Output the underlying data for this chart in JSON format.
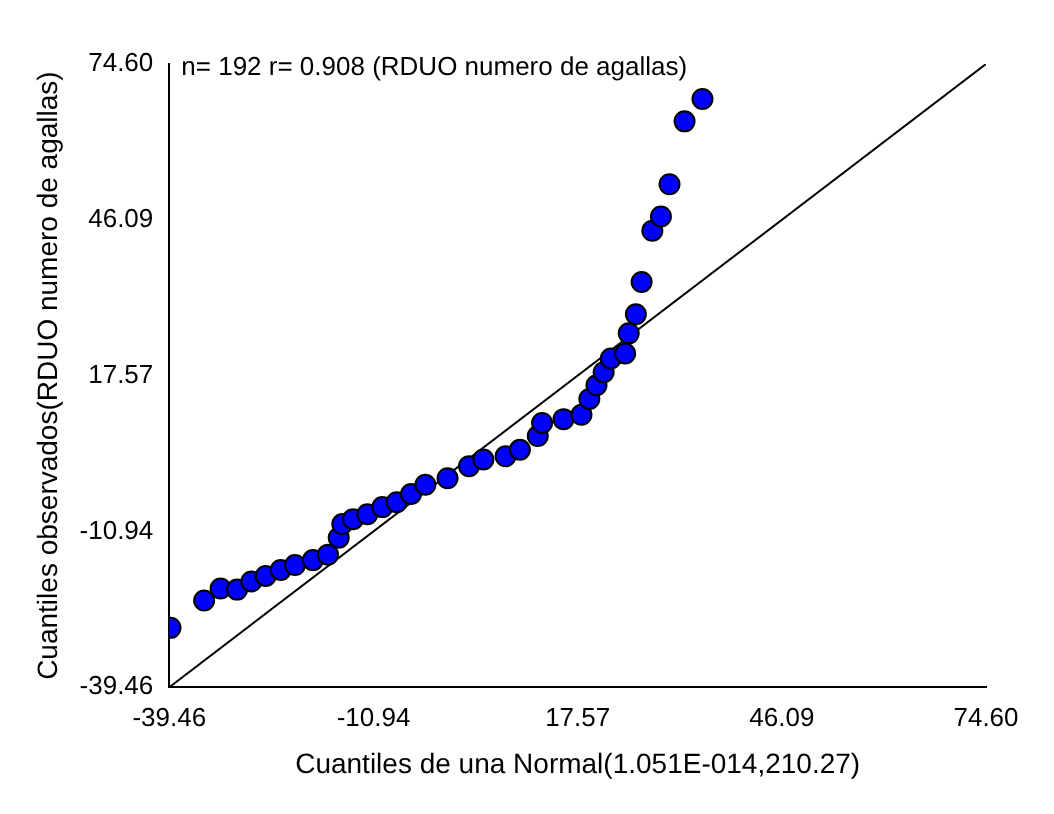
{
  "chart_data": {
    "type": "scatter",
    "xlabel": "Cuantiles de una Normal(1.051E-014,210.27)",
    "ylabel": "Cuantiles observados(RDUO numero de agallas)",
    "annotations": [
      "n= 192 r= 0.908 (RDUO numero de agallas)"
    ],
    "xlim": [
      -39.46,
      74.6
    ],
    "ylim": [
      -39.46,
      74.6
    ],
    "xticks": [
      -39.46,
      -10.94,
      17.57,
      46.09,
      {
        "value": 74.6,
        "label": "74.60"
      }
    ],
    "yticks": [
      -39.46,
      -10.94,
      17.57,
      46.09,
      {
        "value": 74.6,
        "label": "74.60"
      }
    ],
    "grid": false,
    "legend": false,
    "series": [
      {
        "type": "scatter",
        "marker": "circle",
        "color": "#0000ff",
        "x": [
          -39.3,
          -34.6,
          -32.3,
          -30.0,
          -28.0,
          -26.0,
          -23.9,
          -21.9,
          -19.4,
          -17.3,
          -15.8,
          -15.3,
          -13.8,
          -11.8,
          -9.7,
          -7.7,
          -5.7,
          -3.7,
          -0.6,
          2.4,
          4.4,
          7.5,
          9.5,
          12.0,
          12.6,
          15.6,
          18.1,
          19.2,
          20.2,
          21.2,
          22.2,
          24.2,
          24.7,
          25.7,
          26.5,
          28.0,
          29.2,
          30.4,
          32.5,
          35.0
        ],
        "values": [
          -28.6,
          -23.6,
          -21.4,
          -21.6,
          -20.1,
          -19.1,
          -18.0,
          -17.1,
          -16.2,
          -15.2,
          -12.1,
          -9.6,
          -8.7,
          -7.8,
          -6.5,
          -5.6,
          -4.1,
          -2.4,
          -1.2,
          1.0,
          2.2,
          2.8,
          4.0,
          6.5,
          8.9,
          9.6,
          10.4,
          13.3,
          15.8,
          18.2,
          20.7,
          21.6,
          25.3,
          28.8,
          34.7,
          44.1,
          46.7,
          52.6,
          64.1,
          68.2
        ]
      },
      {
        "type": "line",
        "color": "#000000",
        "x": [
          -39.46,
          74.6
        ],
        "values": [
          -39.46,
          74.6
        ]
      }
    ]
  }
}
